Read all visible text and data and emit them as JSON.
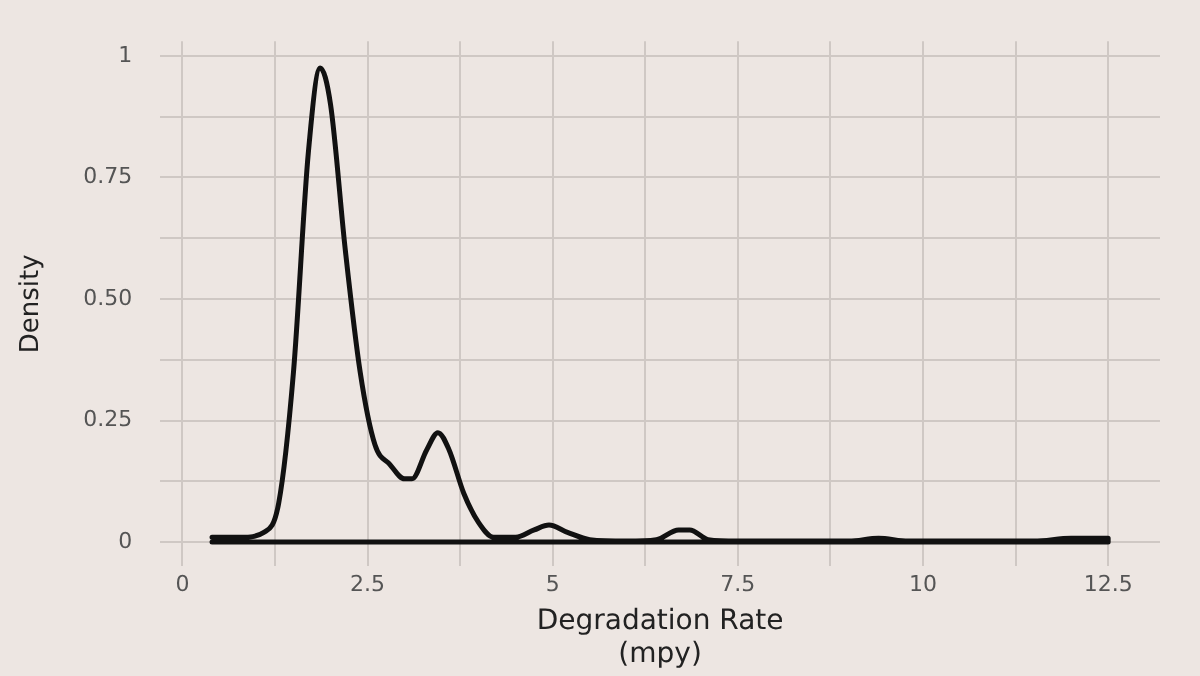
{
  "chart_data": {
    "type": "line",
    "xlabel": "Degradation Rate\n(mpy)",
    "ylabel": "Density",
    "x": [
      0.4,
      0.8,
      1.1,
      1.3,
      1.5,
      1.7,
      1.86,
      2.0,
      2.2,
      2.4,
      2.6,
      2.8,
      3.0,
      3.1,
      3.3,
      3.45,
      3.6,
      3.8,
      4.0,
      4.2,
      4.5,
      4.75,
      4.95,
      5.2,
      5.5,
      6.0,
      6.4,
      6.7,
      6.85,
      7.1,
      7.5,
      9.0,
      9.4,
      9.8,
      11.5,
      12.0,
      12.5,
      12.5,
      0.4
    ],
    "series": [
      {
        "color": "#111111",
        "values": [
          0.01,
          0.01,
          0.02,
          0.08,
          0.35,
          0.8,
          0.975,
          0.9,
          0.6,
          0.35,
          0.2,
          0.16,
          0.13,
          0.13,
          0.19,
          0.225,
          0.19,
          0.1,
          0.04,
          0.01,
          0.01,
          0.025,
          0.035,
          0.02,
          0.005,
          0.002,
          0.005,
          0.025,
          0.025,
          0.005,
          0.002,
          0.002,
          0.008,
          0.002,
          0.002,
          0.008,
          0.008,
          0,
          0
        ]
      }
    ],
    "xlim": [
      -0.3,
      13.2
    ],
    "xticks": [
      0,
      {
        "value": 1.25,
        "label": null
      },
      2.5,
      {
        "value": 3.75,
        "label": null
      },
      5,
      {
        "value": 6.25,
        "label": null
      },
      7.5,
      {
        "value": 8.75,
        "label": null
      },
      10,
      {
        "value": 11.25,
        "label": null
      },
      12.5
    ],
    "ylim": [
      -0.05,
      1.03
    ],
    "yticks": [
      0,
      {
        "value": 0.125,
        "label": null
      },
      0.25,
      {
        "value": 0.375,
        "label": null
      },
      {
        "value": 0.5,
        "label": "0.50"
      },
      {
        "value": 0.625,
        "label": null
      },
      0.75,
      {
        "value": 0.875,
        "label": null
      },
      1
    ],
    "grid": true,
    "legend": false,
    "marker": "none",
    "line_style": "solid"
  }
}
